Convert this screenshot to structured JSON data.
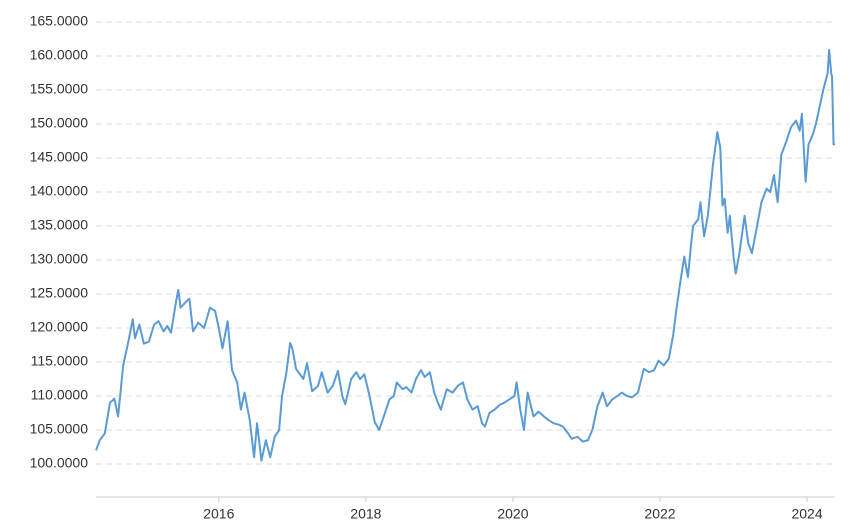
{
  "chart_data": {
    "type": "line",
    "x": [
      2014.33,
      2014.38,
      2014.45,
      2014.52,
      2014.58,
      2014.63,
      2014.7,
      2014.78,
      2014.83,
      2014.86,
      2014.92,
      2014.98,
      2015.05,
      2015.12,
      2015.18,
      2015.25,
      2015.3,
      2015.35,
      2015.42,
      2015.45,
      2015.48,
      2015.55,
      2015.6,
      2015.65,
      2015.72,
      2015.8,
      2015.88,
      2015.95,
      2016.0,
      2016.05,
      2016.12,
      2016.18,
      2016.25,
      2016.3,
      2016.35,
      2016.42,
      2016.48,
      2016.52,
      2016.58,
      2016.64,
      2016.7,
      2016.76,
      2016.82,
      2016.86,
      2016.92,
      2016.97,
      2017.0,
      2017.05,
      2017.15,
      2017.2,
      2017.27,
      2017.35,
      2017.4,
      2017.48,
      2017.55,
      2017.62,
      2017.68,
      2017.72,
      2017.8,
      2017.87,
      2017.92,
      2017.98,
      2018.05,
      2018.12,
      2018.18,
      2018.25,
      2018.32,
      2018.38,
      2018.42,
      2018.5,
      2018.55,
      2018.62,
      2018.68,
      2018.75,
      2018.8,
      2018.87,
      2018.93,
      2018.98,
      2019.02,
      2019.1,
      2019.18,
      2019.25,
      2019.32,
      2019.38,
      2019.45,
      2019.52,
      2019.58,
      2019.62,
      2019.68,
      2019.75,
      2019.82,
      2019.88,
      2019.95,
      2020.02,
      2020.05,
      2020.1,
      2020.15,
      2020.2,
      2020.28,
      2020.35,
      2020.42,
      2020.48,
      2020.55,
      2020.62,
      2020.68,
      2020.75,
      2020.8,
      2020.88,
      2020.95,
      2021.02,
      2021.08,
      2021.15,
      2021.22,
      2021.28,
      2021.35,
      2021.42,
      2021.48,
      2021.55,
      2021.62,
      2021.7,
      2021.78,
      2021.85,
      2021.92,
      2021.98,
      2022.05,
      2022.12,
      2022.18,
      2022.22,
      2022.28,
      2022.33,
      2022.38,
      2022.42,
      2022.45,
      2022.52,
      2022.55,
      2022.6,
      2022.65,
      2022.72,
      2022.78,
      2022.82,
      2022.85,
      2022.88,
      2022.92,
      2022.95,
      2023.0,
      2023.03,
      2023.08,
      2023.15,
      2023.2,
      2023.25,
      2023.32,
      2023.38,
      2023.45,
      2023.5,
      2023.55,
      2023.6,
      2023.65,
      2023.72,
      2023.78,
      2023.85,
      2023.9,
      2023.93,
      2023.98,
      2024.02,
      2024.08,
      2024.12,
      2024.22,
      2024.28,
      2024.3,
      2024.33,
      2024.34,
      2024.36,
      2024.38
    ],
    "values": [
      102.0,
      103.5,
      104.5,
      109.0,
      109.6,
      107.0,
      114.5,
      118.5,
      121.3,
      118.5,
      120.5,
      117.7,
      118.0,
      120.5,
      121.0,
      119.5,
      120.3,
      119.3,
      124.0,
      125.6,
      123.0,
      123.8,
      124.3,
      119.5,
      120.8,
      120.0,
      123.0,
      122.5,
      120.0,
      117.0,
      121.0,
      113.8,
      112.0,
      108.0,
      110.5,
      106.5,
      101.0,
      106.0,
      100.5,
      103.5,
      101.0,
      104.0,
      105.0,
      110.0,
      113.5,
      117.8,
      117.0,
      114.0,
      112.5,
      114.8,
      110.7,
      111.5,
      113.5,
      110.5,
      111.5,
      113.7,
      110.0,
      108.8,
      112.5,
      113.5,
      112.5,
      113.2,
      110.0,
      106.2,
      105.0,
      107.2,
      109.5,
      110.0,
      112.0,
      111.0,
      111.3,
      110.5,
      112.5,
      113.8,
      112.8,
      113.5,
      110.5,
      109.0,
      108.0,
      111.0,
      110.5,
      111.5,
      112.0,
      109.5,
      108.0,
      108.5,
      106.0,
      105.5,
      107.5,
      108.0,
      108.7,
      109.0,
      109.5,
      110.0,
      112.0,
      108.0,
      105.0,
      110.5,
      107.0,
      107.7,
      107.0,
      106.5,
      106.0,
      105.8,
      105.5,
      104.5,
      103.7,
      104.0,
      103.3,
      103.5,
      105.0,
      108.5,
      110.5,
      108.5,
      109.5,
      110.0,
      110.5,
      110.0,
      109.8,
      110.5,
      114.0,
      113.5,
      113.8,
      115.2,
      114.5,
      115.5,
      119.0,
      122.5,
      127.0,
      130.5,
      127.5,
      132.0,
      135.0,
      136.0,
      138.5,
      133.5,
      136.5,
      144.0,
      148.8,
      146.5,
      138.0,
      139.0,
      134.0,
      136.5,
      130.5,
      128.0,
      131.0,
      136.5,
      132.5,
      131.0,
      135.0,
      138.5,
      140.5,
      140.0,
      142.5,
      138.5,
      145.5,
      147.5,
      149.5,
      150.5,
      149.0,
      151.5,
      141.5,
      147.0,
      148.5,
      150.0,
      155.0,
      157.5,
      160.9,
      157.3,
      157.0,
      147.0,
      147.0
    ],
    "color": "#5b9bd5",
    "xlim": [
      2014.33,
      2024.38
    ],
    "xticks": [
      2016,
      2018,
      2020,
      2022,
      2024
    ],
    "ylim": [
      95.15,
      166
    ],
    "yticks": [
      {
        "value": 100,
        "label": "100.0000"
      },
      {
        "value": 105,
        "label": "105.0000"
      },
      {
        "value": 110,
        "label": "110.0000"
      },
      {
        "value": 115,
        "label": "115.0000"
      },
      {
        "value": 120,
        "label": "120.0000"
      },
      {
        "value": 125,
        "label": "125.0000"
      },
      {
        "value": 130,
        "label": "130.0000"
      },
      {
        "value": 135,
        "label": "135.0000"
      },
      {
        "value": 140,
        "label": "140.0000"
      },
      {
        "value": 145,
        "label": "145.0000"
      },
      {
        "value": 150,
        "label": "150.0000"
      },
      {
        "value": 155,
        "label": "155.0000"
      },
      {
        "value": 160,
        "label": "160.0000"
      },
      {
        "value": 165,
        "label": "165.0000"
      }
    ],
    "grid": true
  }
}
